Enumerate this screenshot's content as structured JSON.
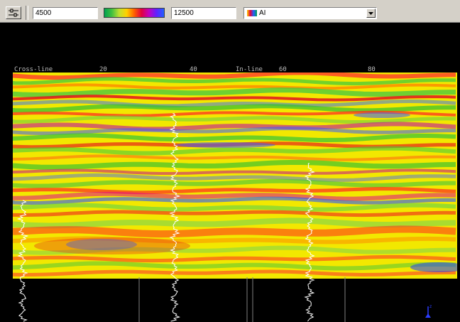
{
  "toolbar": {
    "min_value": "4500",
    "max_value": "12500",
    "attribute": "AI",
    "colormap": [
      "#00a050",
      "#40c040",
      "#c0e030",
      "#ffd000",
      "#ff6000",
      "#e00040",
      "#c000c0",
      "#6020ff",
      "#2060ff"
    ]
  },
  "axis": {
    "crossline_label": "Cross-line",
    "inline_label": "In-line",
    "ticks": [
      "20",
      "40",
      "60",
      "80"
    ]
  },
  "section": {
    "background": "#f2e800"
  }
}
